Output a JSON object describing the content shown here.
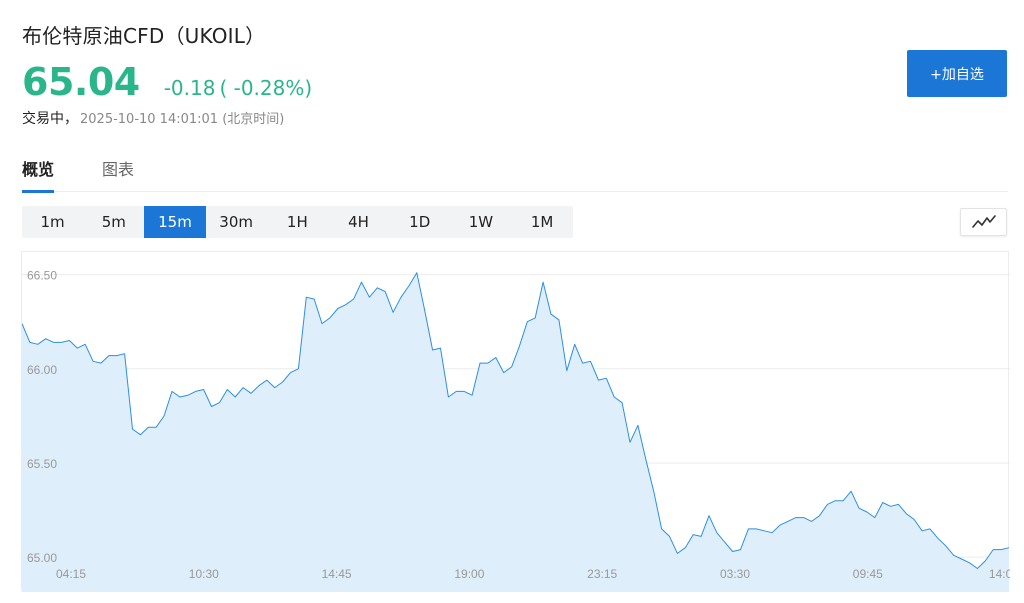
{
  "header": {
    "title": "布伦特原油CFD（UKOIL）",
    "price": "65.04",
    "change": "-0.18",
    "change_pct": "( -0.28%)",
    "status": "交易中，",
    "timestamp": "2025-10-10 14:01:01 (北京时间)",
    "add_button_label": "+加自选",
    "price_color": "#2bb58a",
    "accent_color": "#1b76d6"
  },
  "tabs": [
    {
      "label": "概览",
      "active": true
    },
    {
      "label": "图表",
      "active": false
    }
  ],
  "intervals": [
    {
      "label": "1m",
      "active": false
    },
    {
      "label": "5m",
      "active": false
    },
    {
      "label": "15m",
      "active": true
    },
    {
      "label": "30m",
      "active": false
    },
    {
      "label": "1H",
      "active": false
    },
    {
      "label": "4H",
      "active": false
    },
    {
      "label": "1D",
      "active": false
    },
    {
      "label": "1W",
      "active": false
    },
    {
      "label": "1M",
      "active": false
    }
  ],
  "chart_type_icon": "line-chart-icon",
  "chart_data": {
    "type": "area",
    "ytick_labels": [
      "66.50",
      "66.00",
      "65.50",
      "65.00"
    ],
    "xtick_labels": [
      "04:15",
      "10:30",
      "14:45",
      "19:00",
      "23:15",
      "03:30",
      "09:45",
      "14:0"
    ],
    "ylim": [
      64.9,
      66.62
    ],
    "line_color": "#2e8fdf",
    "fill_color": "#dfeefb",
    "values": [
      66.24,
      66.14,
      66.13,
      66.16,
      66.14,
      66.14,
      66.15,
      66.11,
      66.13,
      66.04,
      66.03,
      66.07,
      66.07,
      66.08,
      65.68,
      65.65,
      65.69,
      65.69,
      65.75,
      65.88,
      65.85,
      65.86,
      65.88,
      65.89,
      65.8,
      65.82,
      65.89,
      65.85,
      65.9,
      65.87,
      65.91,
      65.94,
      65.9,
      65.93,
      65.98,
      66.0,
      66.38,
      66.37,
      66.24,
      66.27,
      66.32,
      66.34,
      66.37,
      66.46,
      66.38,
      66.43,
      66.41,
      66.3,
      66.38,
      66.44,
      66.51,
      66.31,
      66.1,
      66.11,
      65.85,
      65.88,
      65.88,
      65.86,
      66.03,
      66.03,
      66.06,
      65.98,
      66.01,
      66.12,
      66.25,
      66.27,
      66.46,
      66.29,
      66.26,
      65.99,
      66.13,
      66.03,
      66.04,
      65.94,
      65.95,
      65.85,
      65.82,
      65.61,
      65.7,
      65.52,
      65.35,
      65.15,
      65.11,
      65.02,
      65.05,
      65.12,
      65.11,
      65.22,
      65.13,
      65.08,
      65.03,
      65.04,
      65.15,
      65.15,
      65.14,
      65.13,
      65.17,
      65.19,
      65.21,
      65.21,
      65.19,
      65.22,
      65.28,
      65.3,
      65.3,
      65.35,
      65.26,
      65.24,
      65.21,
      65.29,
      65.27,
      65.28,
      65.23,
      65.2,
      65.14,
      65.15,
      65.1,
      65.06,
      65.01,
      64.99,
      64.97,
      64.94,
      64.98,
      65.04,
      65.04,
      65.05
    ]
  }
}
